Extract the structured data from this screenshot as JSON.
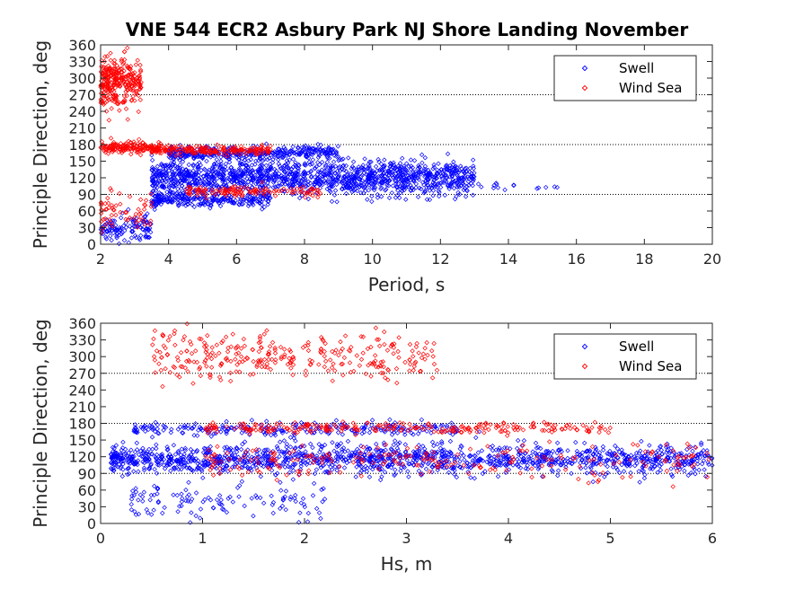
{
  "figure": {
    "title": "VNE 544 ECR2 Asbury Park NJ Shore Landing November"
  },
  "chart_data": [
    {
      "type": "scatter",
      "xlabel": "Period, s",
      "ylabel": "Principle Direction, deg",
      "xlim": [
        2,
        20
      ],
      "ylim": [
        0,
        360
      ],
      "xticks": [
        "2",
        "4",
        "6",
        "8",
        "10",
        "12",
        "14",
        "16",
        "18",
        "20"
      ],
      "yticks": [
        "0",
        "30",
        "60",
        "90",
        "120",
        "150",
        "180",
        "210",
        "240",
        "270",
        "300",
        "330",
        "360"
      ],
      "reference_lines": [
        90,
        180,
        270
      ],
      "legend_position": "top-right",
      "series": [
        {
          "name": "Swell",
          "color": "#0000ff",
          "marker": "diamond",
          "clusters": [
            {
              "x_range": [
                3.5,
                13
              ],
              "y_center": 120,
              "y_spread": 25,
              "count": 1400
            },
            {
              "x_range": [
                4,
                9
              ],
              "y_center": 165,
              "y_spread": 10,
              "count": 350
            },
            {
              "x_range": [
                3.5,
                7
              ],
              "y_center": 80,
              "y_spread": 12,
              "count": 250
            },
            {
              "x_range": [
                2,
                3.5
              ],
              "y_center": 25,
              "y_spread": 20,
              "count": 120
            },
            {
              "x_range": [
                13,
                15.6
              ],
              "y_center": 105,
              "y_spread": 8,
              "count": 15
            }
          ]
        },
        {
          "name": "Wind Sea",
          "color": "#ff0000",
          "marker": "diamond",
          "clusters": [
            {
              "x_range": [
                2,
                3.2
              ],
              "y_center": 295,
              "y_spread": 35,
              "count": 300
            },
            {
              "x_range": [
                2,
                3.8
              ],
              "y_center": 175,
              "y_spread": 10,
              "count": 150
            },
            {
              "x_range": [
                3.5,
                7
              ],
              "y_center": 170,
              "y_spread": 6,
              "count": 200
            },
            {
              "x_range": [
                4.5,
                8.5
              ],
              "y_center": 95,
              "y_spread": 8,
              "count": 120
            },
            {
              "x_range": [
                2,
                3.5
              ],
              "y_center": 60,
              "y_spread": 30,
              "count": 60
            }
          ]
        }
      ]
    },
    {
      "type": "scatter",
      "xlabel": "Hs, m",
      "ylabel": "Principle Direction, deg",
      "xlim": [
        0,
        6
      ],
      "ylim": [
        0,
        360
      ],
      "xticks": [
        "0",
        "1",
        "2",
        "3",
        "4",
        "5",
        "6"
      ],
      "yticks": [
        "0",
        "30",
        "60",
        "90",
        "120",
        "150",
        "180",
        "210",
        "240",
        "270",
        "300",
        "330",
        "360"
      ],
      "reference_lines": [
        90,
        180,
        270
      ],
      "legend_position": "top-right",
      "series": [
        {
          "name": "Swell",
          "color": "#0000ff",
          "marker": "diamond",
          "clusters": [
            {
              "x_range": [
                0.1,
                6
              ],
              "y_center": 115,
              "y_spread": 22,
              "count": 1400
            },
            {
              "x_range": [
                0.3,
                3.5
              ],
              "y_center": 170,
              "y_spread": 10,
              "count": 250
            },
            {
              "x_range": [
                0.3,
                2.2
              ],
              "y_center": 40,
              "y_spread": 30,
              "count": 120
            }
          ]
        },
        {
          "name": "Wind Sea",
          "color": "#ff0000",
          "marker": "diamond",
          "clusters": [
            {
              "x_range": [
                0.5,
                3.3
              ],
              "y_center": 300,
              "y_spread": 35,
              "count": 300
            },
            {
              "x_range": [
                1,
                5
              ],
              "y_center": 172,
              "y_spread": 8,
              "count": 250
            },
            {
              "x_range": [
                1,
                6
              ],
              "y_center": 110,
              "y_spread": 25,
              "count": 220
            }
          ]
        }
      ]
    }
  ]
}
